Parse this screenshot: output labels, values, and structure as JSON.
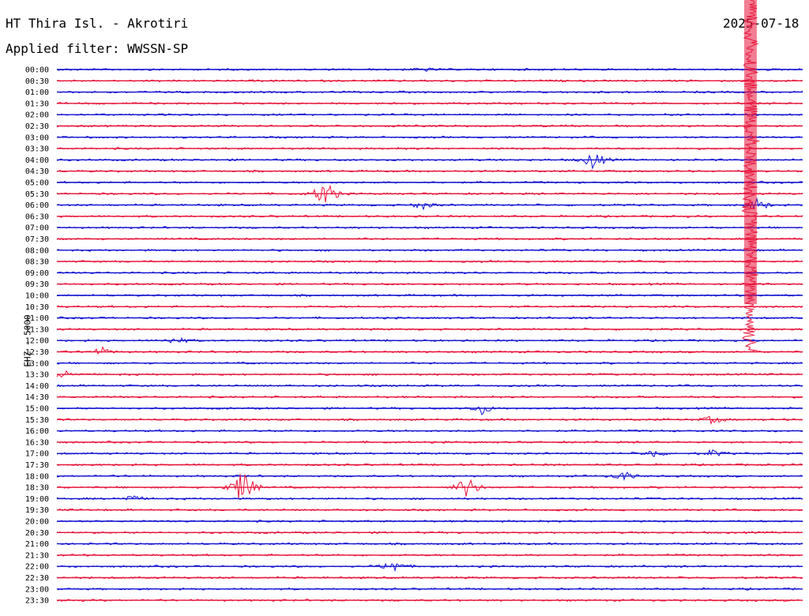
{
  "header": {
    "station": "HT Thira Isl. - Akrotiri",
    "filter": "Applied filter: WWSSN-SP",
    "date": "2025-07-18",
    "channel": "EHZ - 5000"
  },
  "chart_data": {
    "type": "line",
    "title": "HT Thira Isl. - Akrotiri",
    "subtitle": "Applied filter: WWSSN-SP",
    "ylabel": "EHZ - 5000",
    "row_labels": [
      "00:00",
      "00:30",
      "01:00",
      "01:30",
      "02:00",
      "02:30",
      "03:00",
      "03:30",
      "04:00",
      "04:30",
      "05:00",
      "05:30",
      "06:00",
      "06:30",
      "07:00",
      "07:30",
      "08:00",
      "08:30",
      "09:00",
      "09:30",
      "10:00",
      "10:30",
      "11:00",
      "11:30",
      "12:00",
      "12:30",
      "13:00",
      "13:30",
      "14:00",
      "14:30",
      "15:00",
      "15:30",
      "16:00",
      "16:30",
      "17:00",
      "17:30",
      "18:00",
      "18:30",
      "19:00",
      "19:30",
      "20:00",
      "20:30",
      "21:00",
      "21:30",
      "22:00",
      "22:30",
      "23:00",
      "23:30"
    ],
    "series_colors": [
      "#1414d2",
      "#e8163c"
    ],
    "grid": false,
    "events": [
      {
        "row": "00:00",
        "at": 0.49,
        "amp": 3
      },
      {
        "row": "04:00",
        "at": 0.72,
        "amp": 14
      },
      {
        "row": "05:30",
        "at": 0.36,
        "amp": 22
      },
      {
        "row": "06:00",
        "at": 0.49,
        "amp": 6
      },
      {
        "row": "06:00",
        "at": 0.94,
        "amp": 10
      },
      {
        "row": "12:00",
        "at": 0.16,
        "amp": 6
      },
      {
        "row": "12:30",
        "at": 0.06,
        "amp": 6
      },
      {
        "row": "13:30",
        "at": 0.01,
        "amp": 7
      },
      {
        "row": "15:00",
        "at": 0.57,
        "amp": 8
      },
      {
        "row": "15:30",
        "at": 0.88,
        "amp": 6
      },
      {
        "row": "17:00",
        "at": 0.8,
        "amp": 6
      },
      {
        "row": "17:00",
        "at": 0.88,
        "amp": 5
      },
      {
        "row": "18:00",
        "at": 0.76,
        "amp": 7
      },
      {
        "row": "18:30",
        "at": 0.25,
        "amp": 30
      },
      {
        "row": "18:30",
        "at": 0.55,
        "amp": 18
      },
      {
        "row": "19:00",
        "at": 0.1,
        "amp": 5
      },
      {
        "row": "22:00",
        "at": 0.45,
        "amp": 10
      }
    ],
    "main_event": {
      "start_row": "00:00",
      "end_row": "12:00",
      "at": 0.93
    }
  }
}
